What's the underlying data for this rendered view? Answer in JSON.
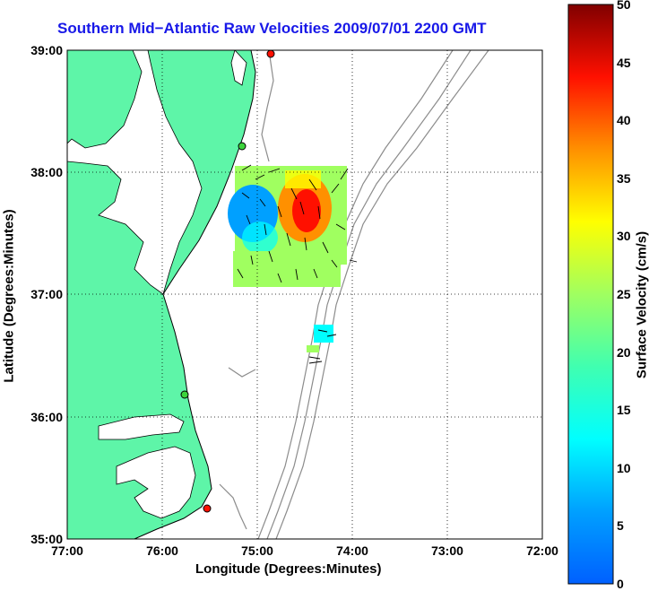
{
  "map": {
    "title": "Southern Mid−Atlantic Raw Velocities 2009/07/01 2200 GMT",
    "xlabel": "Longitude (Degrees:Minutes)",
    "ylabel": "Latitude (Degrees:Minutes)",
    "x_ticks": [
      "77:00",
      "76:00",
      "75:00",
      "74:00",
      "73:00",
      "72:00"
    ],
    "y_ticks": [
      "39:00",
      "38:00",
      "37:00",
      "36:00",
      "35:00"
    ],
    "lon_range": [
      -77,
      -72
    ],
    "lat_range": [
      35,
      39
    ],
    "grid": "dotted",
    "land_color": "#5ef5a8",
    "bathymetry_color": "#8c8c8c",
    "site_markers": [
      {
        "lon": -74.85,
        "lat": 38.97,
        "color": "red"
      },
      {
        "lon": -75.05,
        "lat": 38.2,
        "color": "green"
      },
      {
        "lon": -75.75,
        "lat": 36.17,
        "color": "green"
      },
      {
        "lon": -75.52,
        "lat": 35.25,
        "color": "red"
      }
    ]
  },
  "colorbar": {
    "label": "Surface Velocity (cm/s)",
    "ticks": [
      "50",
      "45",
      "40",
      "35",
      "30",
      "25",
      "20",
      "15",
      "10",
      "5",
      "0"
    ],
    "range": [
      0,
      50
    ],
    "colormap": "jet"
  }
}
